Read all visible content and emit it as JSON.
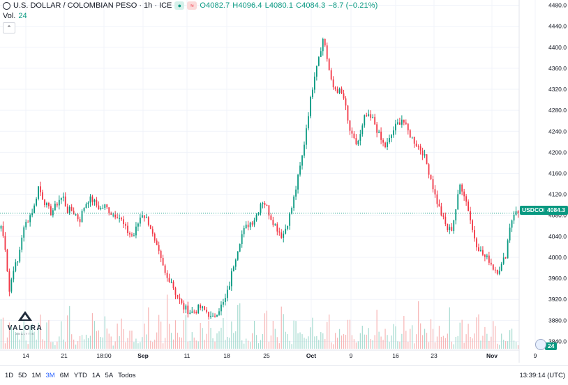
{
  "chart_data": {
    "type": "candlestick",
    "title": "U.S. DOLLAR / COLOMBIAN PESO · 1h · ICE",
    "symbol": "USDCOP",
    "ohlc": {
      "open": "4082.7",
      "high": "4096.4",
      "low": "4080.1",
      "close": "4084.3",
      "change": "−8.7 (−0.21%)"
    },
    "last_price": "4084.3",
    "volume": {
      "label": "Vol.",
      "value": "24"
    },
    "y_ticks": [
      "4480.0",
      "4440.0",
      "4400.0",
      "4360.0",
      "4320.0",
      "4280.0",
      "4240.0",
      "4200.0",
      "4160.0",
      "4120.0",
      "4080.0",
      "4040.0",
      "4000.0",
      "3960.0",
      "3920.0",
      "3880.0",
      "3840.0"
    ],
    "ylim": [
      3826,
      4490
    ],
    "x_ticks": [
      "14",
      "21",
      "18:00",
      "Sep",
      "11",
      "18",
      "25",
      "Oct",
      "9",
      "16",
      "23",
      "Nov",
      "9"
    ],
    "x_bold_ticks": [
      "Sep",
      "Oct",
      "Nov"
    ],
    "price_path": [
      4060,
      4020,
      3935,
      3980,
      3990,
      4040,
      4065,
      4080,
      4095,
      4135,
      4115,
      4098,
      4085,
      4095,
      4110,
      4115,
      4088,
      4090,
      4082,
      4070,
      4095,
      4110,
      4110,
      4100,
      4092,
      4098,
      4090,
      4082,
      4082,
      4072,
      4055,
      4045,
      4040,
      4062,
      4085,
      4075,
      4062,
      4030,
      4010,
      3985,
      3960,
      3960,
      3935,
      3920,
      3905,
      3900,
      3895,
      3898,
      3905,
      3900,
      3895,
      3880,
      3895,
      3905,
      3915,
      3940,
      3980,
      4010,
      4040,
      4055,
      4065,
      4070,
      4085,
      4110,
      4100,
      4080,
      4065,
      4052,
      4040,
      4060,
      4085,
      4120,
      4160,
      4200,
      4260,
      4310,
      4360,
      4390,
      4420,
      4370,
      4325,
      4320,
      4315,
      4300,
      4250,
      4225,
      4215,
      4235,
      4270,
      4265,
      4262,
      4240,
      4220,
      4210,
      4225,
      4245,
      4255,
      4265,
      4245,
      4232,
      4220,
      4210,
      4200,
      4175,
      4148,
      4115,
      4092,
      4070,
      4052,
      4055,
      4095,
      4140,
      4120,
      4090,
      4050,
      4025,
      4010,
      4000,
      3995,
      3980,
      3975,
      3985,
      4005,
      4060,
      4085,
      4084.3
    ],
    "volume_heights": [
      0.35,
      0.15,
      0.55,
      0.25,
      0.18,
      0.45,
      0.12,
      0.3,
      0.2,
      0.5,
      0.16,
      0.4,
      0.22,
      0.1,
      0.3,
      0.14,
      0.48,
      0.2,
      0.12,
      0.35,
      0.25,
      0.18,
      0.6,
      0.3,
      0.15,
      0.42,
      0.2,
      0.1,
      0.28,
      0.35,
      0.16,
      0.5,
      0.22,
      0.12,
      0.3,
      0.45,
      0.18,
      0.25,
      0.38,
      0.14,
      0.6,
      0.2,
      0.32,
      0.15,
      0.44,
      0.1,
      0.28,
      0.18,
      0.5,
      0.24,
      0.34,
      0.12,
      0.22,
      0.4,
      0.16,
      0.3,
      0.2,
      0.55,
      0.14,
      0.26,
      0.18,
      0.36,
      0.1,
      0.28,
      0.42,
      0.2,
      0.32,
      0.15,
      0.48,
      0.22,
      0.12,
      0.38,
      0.25,
      0.3,
      0.18,
      0.52,
      0.14,
      0.28,
      0.2,
      0.44,
      0.1,
      0.34,
      0.22,
      0.16,
      0.4,
      0.26,
      0.12,
      0.5,
      0.2,
      0.3,
      0.18,
      0.46,
      0.15,
      0.35,
      0.22,
      0.28,
      0.12,
      0.42,
      0.2,
      0.32,
      0.16,
      0.55,
      0.24,
      0.18,
      0.38,
      0.14,
      0.3,
      0.2,
      0.48,
      0.12,
      0.26,
      0.36,
      0.16,
      0.3,
      0.22,
      0.44,
      0.15,
      0.28,
      0.2,
      0.34,
      0.12,
      0.24,
      0.18,
      0.3,
      0.1,
      0.06
    ],
    "colors": {
      "up": "#089981",
      "down": "#f23645",
      "up_vol": "#a6dbd0",
      "down_vol": "#f7b5b5",
      "grid": "#f0f3fa",
      "last_line": "#089981"
    }
  },
  "toolbar": {
    "ranges": [
      "1D",
      "5D",
      "1M",
      "3M",
      "6M",
      "YTD",
      "1A",
      "5A",
      "Todos"
    ],
    "active_range": "3M",
    "clock": "13:39:14 (UTC)"
  },
  "watermark": {
    "name": "VALORA",
    "subtitle": "ANALYTIK"
  }
}
